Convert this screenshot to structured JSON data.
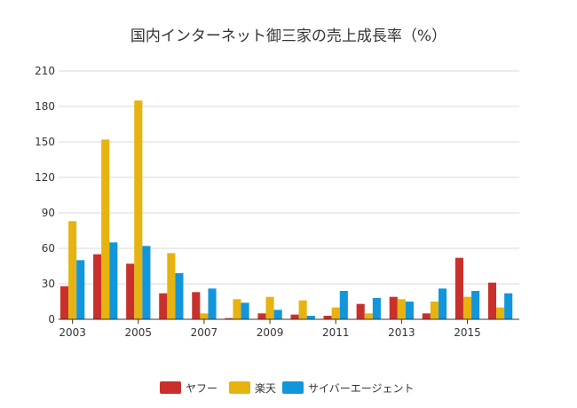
{
  "chart_data": {
    "type": "bar",
    "title": "国内インターネット御三家の売上成長率（%）",
    "xlabel": "",
    "ylabel": "",
    "categories": [
      "2003",
      "2004",
      "2005",
      "2006",
      "2007",
      "2008",
      "2009",
      "2010",
      "2011",
      "2012",
      "2013",
      "2014",
      "2015",
      "2016"
    ],
    "x_tick_labels": [
      "2003",
      "2005",
      "2007",
      "2009",
      "2011",
      "2013",
      "2015"
    ],
    "ylim": [
      0,
      210
    ],
    "y_ticks": [
      0,
      30,
      60,
      90,
      120,
      150,
      180,
      210
    ],
    "grid": true,
    "legend_position": "bottom",
    "series": [
      {
        "name": "ヤフー",
        "color": "#c9302c",
        "values": [
          28,
          55,
          47,
          22,
          23,
          1,
          5,
          4,
          3,
          13,
          19,
          5,
          52,
          31
        ]
      },
      {
        "name": "楽天",
        "color": "#e6b30f",
        "values": [
          83,
          152,
          185,
          56,
          5,
          17,
          19,
          16,
          10,
          5,
          17,
          15,
          19,
          10
        ]
      },
      {
        "name": "サイバーエージェント",
        "color": "#1296db",
        "values": [
          50,
          65,
          62,
          39,
          26,
          14,
          8,
          3,
          24,
          18,
          15,
          26,
          24,
          22
        ]
      }
    ]
  }
}
